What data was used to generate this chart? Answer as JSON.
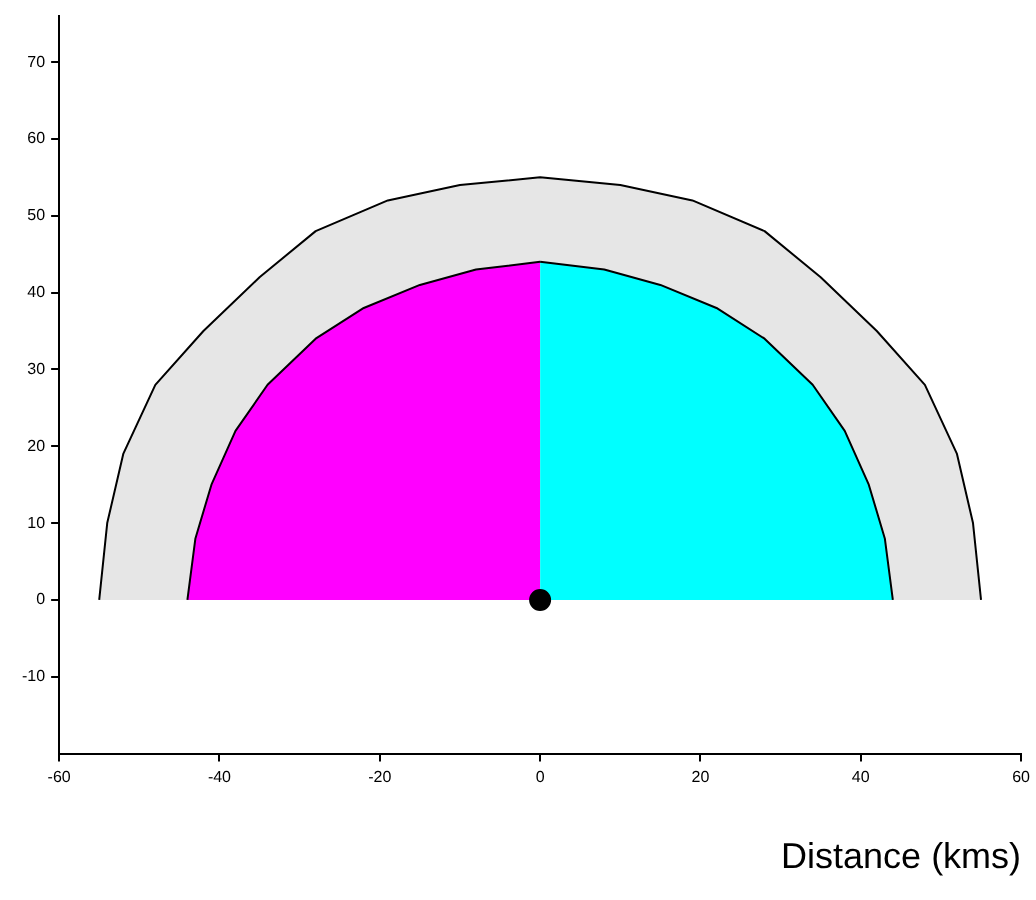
{
  "chart_data": {
    "type": "area",
    "xlabel": "Distance (kms)",
    "xlim": [
      -60,
      60
    ],
    "xticks": [
      -60,
      -40,
      -20,
      0,
      20,
      40,
      60
    ],
    "ylim": [
      -20,
      76
    ],
    "yticks": [
      -10,
      0,
      10,
      20,
      30,
      40,
      50,
      60,
      70
    ],
    "grid": false,
    "legend": false,
    "series": [
      {
        "color": "#e6e6e6",
        "x": [
          -55,
          -54,
          -52,
          -48,
          -42,
          -35,
          -28,
          -19,
          -10,
          0,
          10,
          19,
          28,
          35,
          42,
          48,
          52,
          54,
          55
        ],
        "values": [
          0,
          10,
          19,
          28,
          35,
          42,
          48,
          52,
          54,
          55,
          54,
          52,
          48,
          42,
          35,
          28,
          19,
          10,
          0
        ]
      },
      {
        "color": "#ff00ff",
        "x": [
          -44,
          -43,
          -41,
          -38,
          -34,
          -28,
          -22,
          -15,
          -8,
          0
        ],
        "values": [
          0,
          8,
          15,
          22,
          28,
          34,
          38,
          41,
          43,
          44
        ]
      },
      {
        "color": "#00ffff",
        "x": [
          0,
          8,
          15,
          22,
          28,
          34,
          38,
          41,
          43,
          44
        ],
        "values": [
          44,
          43,
          41,
          38,
          34,
          28,
          22,
          15,
          8,
          0
        ]
      },
      {
        "type": "scatter",
        "color": "#000000",
        "x": [
          0
        ],
        "values": [
          0
        ]
      }
    ]
  }
}
